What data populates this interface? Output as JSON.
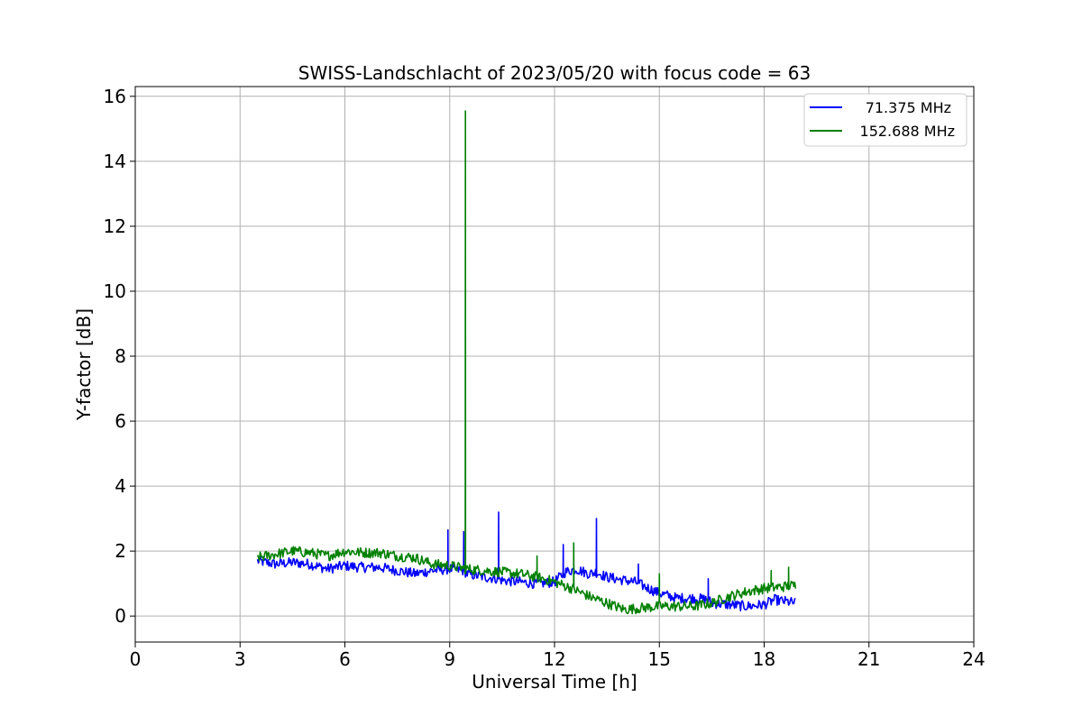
{
  "chart_data": {
    "type": "line",
    "title": "SWISS-Landschlacht of 2023/05/20 with focus code = 63",
    "xlabel": "Universal Time [h]",
    "ylabel": "Y-factor [dB]",
    "xlim": [
      0,
      24
    ],
    "ylim": [
      -0.8,
      16.3
    ],
    "xticks": [
      0,
      3,
      6,
      9,
      12,
      15,
      18,
      21,
      24
    ],
    "yticks": [
      0,
      2,
      4,
      6,
      8,
      10,
      12,
      14,
      16
    ],
    "grid": true,
    "legend_position": "top-right",
    "series": [
      {
        "name": "71.375 MHz",
        "color": "#0000ff",
        "x": [
          3.5,
          4.0,
          4.5,
          5.0,
          5.5,
          6.0,
          6.5,
          7.0,
          7.5,
          8.0,
          8.5,
          9.0,
          9.4,
          9.5,
          10.0,
          10.4,
          10.5,
          11.0,
          11.5,
          12.0,
          12.3,
          12.6,
          13.0,
          13.2,
          13.5,
          14.0,
          14.3,
          14.5,
          15.0,
          15.5,
          16.0,
          16.4,
          16.5,
          17.0,
          17.5,
          18.0,
          18.3,
          18.6,
          18.9
        ],
        "y": [
          1.7,
          1.6,
          1.65,
          1.6,
          1.45,
          1.55,
          1.5,
          1.5,
          1.4,
          1.3,
          1.4,
          1.45,
          1.4,
          1.3,
          1.2,
          1.15,
          1.1,
          1.05,
          1.0,
          1.05,
          1.35,
          1.45,
          1.3,
          1.35,
          1.2,
          1.1,
          1.05,
          0.95,
          0.7,
          0.55,
          0.55,
          0.5,
          0.4,
          0.35,
          0.3,
          0.35,
          0.5,
          0.45,
          0.4
        ],
        "spikes": [
          {
            "x": 8.95,
            "y": 2.65
          },
          {
            "x": 9.4,
            "y": 2.6
          },
          {
            "x": 10.4,
            "y": 3.2
          },
          {
            "x": 12.25,
            "y": 2.2
          },
          {
            "x": 13.2,
            "y": 3.0
          },
          {
            "x": 14.4,
            "y": 1.6
          },
          {
            "x": 16.4,
            "y": 1.15
          }
        ]
      },
      {
        "name": "152.688 MHz",
        "color": "#008000",
        "x": [
          3.5,
          4.0,
          4.5,
          5.0,
          5.5,
          6.0,
          6.5,
          7.0,
          7.5,
          8.0,
          8.5,
          9.0,
          9.5,
          10.0,
          10.5,
          11.0,
          11.5,
          12.0,
          12.5,
          13.0,
          13.5,
          14.0,
          14.5,
          15.0,
          15.5,
          16.0,
          16.5,
          17.0,
          17.5,
          18.0,
          18.5,
          18.9
        ],
        "y": [
          1.8,
          1.9,
          2.0,
          1.95,
          1.85,
          2.0,
          1.95,
          1.95,
          1.85,
          1.8,
          1.6,
          1.55,
          1.45,
          1.4,
          1.35,
          1.3,
          1.2,
          1.05,
          0.85,
          0.6,
          0.4,
          0.2,
          0.25,
          0.3,
          0.3,
          0.3,
          0.4,
          0.6,
          0.75,
          0.85,
          0.9,
          0.95
        ],
        "spikes": [
          {
            "x": 9.45,
            "y": 15.55
          },
          {
            "x": 11.5,
            "y": 1.85
          },
          {
            "x": 12.55,
            "y": 2.25
          },
          {
            "x": 15.0,
            "y": 1.3
          },
          {
            "x": 18.2,
            "y": 1.4
          },
          {
            "x": 18.7,
            "y": 1.5
          }
        ]
      }
    ]
  }
}
